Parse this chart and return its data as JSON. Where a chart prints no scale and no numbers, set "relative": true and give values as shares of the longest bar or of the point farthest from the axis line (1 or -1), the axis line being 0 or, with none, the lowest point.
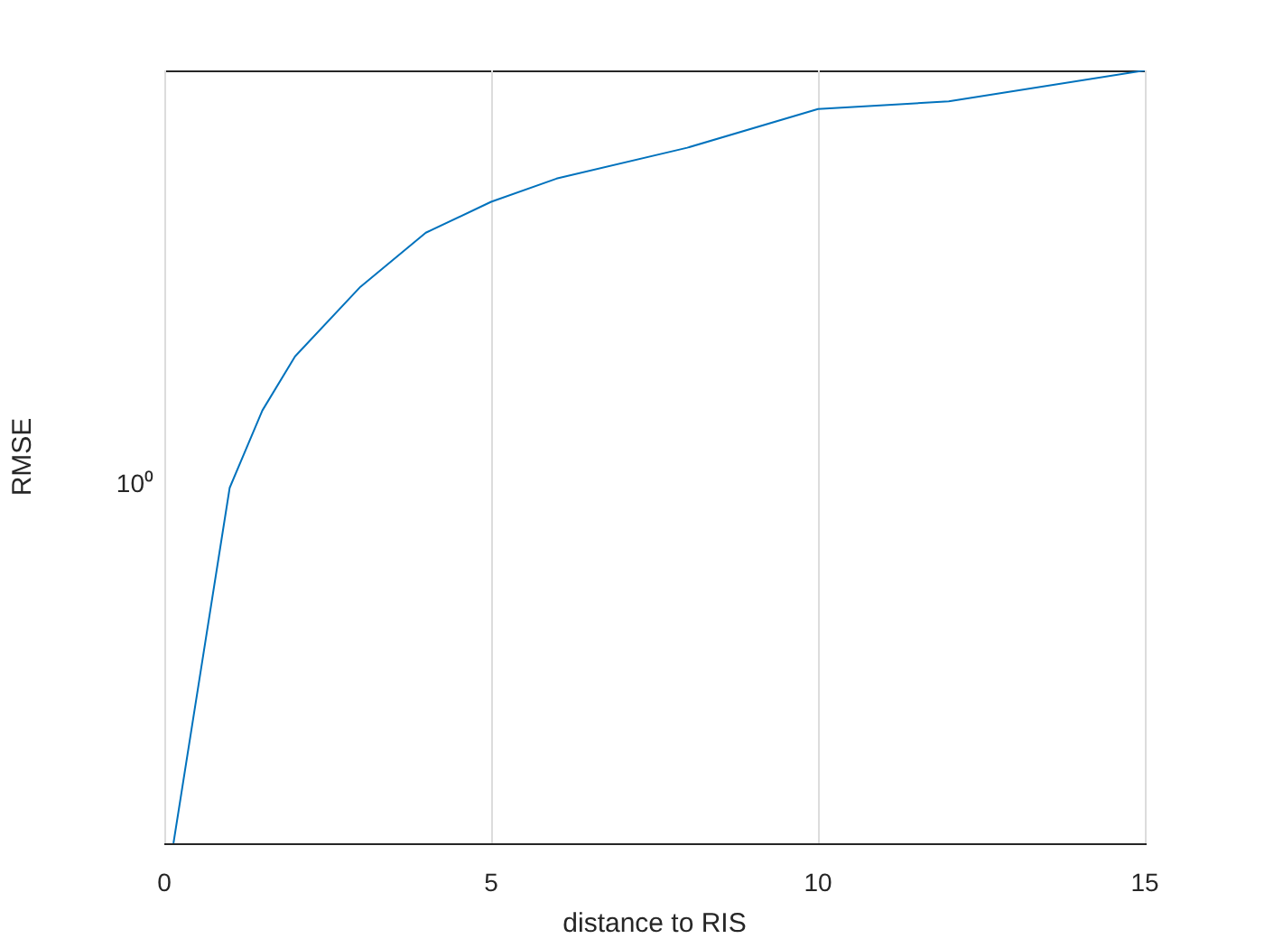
{
  "chart_data": {
    "type": "line",
    "xlabel": "distance to RIS",
    "ylabel": "RMSE",
    "x": [
      0.14,
      1,
      1.5,
      2,
      3,
      4,
      5,
      6,
      8,
      10,
      12,
      15
    ],
    "series": [
      {
        "color": "#0072bd",
        "values": [
          0,
          0.46,
          0.56,
          0.63,
          0.72,
          0.79,
          0.83,
          0.86,
          0.9,
          0.95,
          0.96,
          1
        ]
      }
    ],
    "relative": true,
    "annotations": [
      "10⁰"
    ],
    "xlim": [
      0,
      15
    ],
    "xticks": [
      0,
      5,
      10,
      15
    ],
    "grid": "x",
    "legend": false,
    "marker": "none",
    "line_style": "solid"
  }
}
